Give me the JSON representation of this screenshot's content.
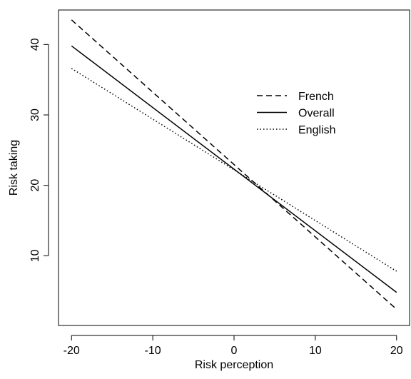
{
  "chart_data": {
    "type": "line",
    "x_label": "Risk perception",
    "y_label": "Risk taking",
    "xlim": [
      -21.6,
      21.6
    ],
    "ylim": [
      0.1,
      44.9
    ],
    "xticks": [
      -20,
      -10,
      0,
      10,
      20
    ],
    "yticks": [
      10,
      20,
      30,
      40
    ],
    "x": [
      -20,
      20
    ],
    "legend": "right",
    "series": [
      {
        "name": "French",
        "color": "#000000",
        "linestyle": "dashed",
        "values": [
          43.5,
          2.4
        ]
      },
      {
        "name": "Overall",
        "color": "#000000",
        "linestyle": "solid",
        "values": [
          39.8,
          4.8
        ]
      },
      {
        "name": "English",
        "color": "#000000",
        "linestyle": "dotted",
        "values": [
          36.6,
          7.8
        ]
      }
    ]
  }
}
